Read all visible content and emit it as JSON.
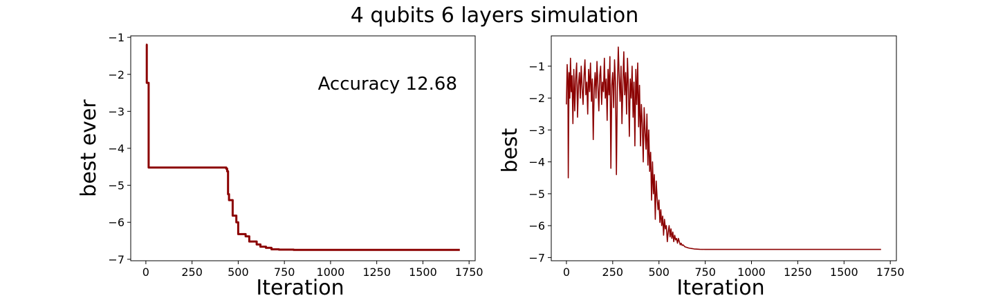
{
  "figure": {
    "title": "4 qubits 6 layers simulation"
  },
  "chart_data": [
    {
      "type": "line",
      "title": "",
      "xlabel": "Iteration",
      "ylabel": "best ever",
      "xlim": [
        -82,
        1783
      ],
      "ylim": [
        -7.04,
        -0.96
      ],
      "xticks": [
        0,
        250,
        500,
        750,
        1000,
        1250,
        1500,
        1750
      ],
      "yticks": [
        -7,
        -6,
        -5,
        -4,
        -3,
        -2,
        -1
      ],
      "xticklabels": [
        "0",
        "250",
        "500",
        "750",
        "1000",
        "1250",
        "1500",
        "1750"
      ],
      "yticklabels": [
        "−7",
        "−6",
        "−5",
        "−4",
        "−3",
        "−2",
        "−1"
      ],
      "annotation": "Accuracy 12.68",
      "grid": false,
      "series": [
        {
          "color": "#8b0000",
          "step": true,
          "x": [
            0,
            5,
            15,
            430,
            435,
            440,
            445,
            450,
            460,
            470,
            480,
            490,
            500,
            520,
            540,
            560,
            580,
            600,
            620,
            650,
            680,
            720,
            800,
            1000,
            1700
          ],
          "y": [
            -1.2,
            -2.23,
            -4.52,
            -4.52,
            -4.55,
            -4.62,
            -5.24,
            -5.4,
            -5.4,
            -5.82,
            -5.82,
            -6.0,
            -6.32,
            -6.32,
            -6.38,
            -6.52,
            -6.52,
            -6.6,
            -6.66,
            -6.69,
            -6.73,
            -6.74,
            -6.745,
            -6.745,
            -6.745
          ]
        }
      ]
    },
    {
      "type": "line",
      "title": "",
      "xlabel": "Iteration",
      "ylabel": "best",
      "xlim": [
        -82,
        1783
      ],
      "ylim": [
        -7.1,
        -0.05
      ],
      "xticks": [
        0,
        250,
        500,
        750,
        1000,
        1250,
        1500,
        1750
      ],
      "yticks": [
        -7,
        -6,
        -5,
        -4,
        -3,
        -2,
        -1
      ],
      "xticklabels": [
        "0",
        "250",
        "500",
        "750",
        "1000",
        "1250",
        "1500",
        "1750"
      ],
      "yticklabels": [
        "−7",
        "−6",
        "−5",
        "−4",
        "−3",
        "−2",
        "−1"
      ],
      "grid": false,
      "series": [
        {
          "color": "#8b0000",
          "x": [
            0,
            4,
            8,
            10,
            14,
            18,
            22,
            26,
            30,
            35,
            40,
            45,
            50,
            55,
            60,
            65,
            70,
            75,
            80,
            85,
            90,
            95,
            100,
            105,
            110,
            115,
            120,
            125,
            130,
            135,
            140,
            145,
            150,
            155,
            160,
            165,
            170,
            175,
            180,
            185,
            190,
            195,
            200,
            205,
            210,
            215,
            220,
            225,
            230,
            235,
            240,
            245,
            250,
            255,
            260,
            265,
            270,
            275,
            280,
            285,
            290,
            295,
            300,
            305,
            310,
            315,
            320,
            325,
            330,
            335,
            340,
            345,
            350,
            355,
            360,
            365,
            370,
            375,
            380,
            385,
            390,
            395,
            400,
            405,
            410,
            415,
            420,
            425,
            430,
            435,
            440,
            445,
            450,
            455,
            460,
            465,
            470,
            475,
            480,
            485,
            490,
            495,
            500,
            505,
            510,
            515,
            520,
            525,
            530,
            535,
            540,
            545,
            550,
            555,
            560,
            565,
            570,
            575,
            580,
            585,
            590,
            595,
            600,
            605,
            610,
            615,
            620,
            625,
            630,
            640,
            650,
            660,
            670,
            680,
            690,
            700,
            720,
            750,
            800,
            900,
            1000,
            1200,
            1400,
            1600,
            1700
          ],
          "y": [
            -2.2,
            -0.95,
            -1.5,
            -4.5,
            -1.2,
            -2.0,
            -0.75,
            -1.8,
            -1.3,
            -2.8,
            -1.1,
            -2.4,
            -1.4,
            -0.9,
            -2.6,
            -1.6,
            -1.2,
            -2.0,
            -1.0,
            -1.7,
            -2.2,
            -1.3,
            -0.8,
            -1.9,
            -1.5,
            -2.5,
            -1.1,
            -1.8,
            -0.9,
            -2.1,
            -1.4,
            -3.3,
            -1.7,
            -1.2,
            -2.0,
            -0.85,
            -1.6,
            -2.4,
            -1.3,
            -1.0,
            -2.2,
            -1.5,
            -1.8,
            -0.75,
            -2.0,
            -1.4,
            -2.7,
            -1.1,
            -1.9,
            -0.7,
            -4.2,
            -1.6,
            -1.2,
            -2.3,
            -0.8,
            -1.5,
            -4.4,
            -1.8,
            -0.4,
            -1.3,
            -2.1,
            -1.0,
            -2.8,
            -1.6,
            -0.55,
            -1.9,
            -1.2,
            -2.5,
            -0.75,
            -1.7,
            -3.2,
            -1.4,
            -2.0,
            -1.0,
            -2.6,
            -1.5,
            -3.5,
            -1.1,
            -2.2,
            -0.9,
            -2.9,
            -1.6,
            -3.5,
            -2.2,
            -2.8,
            -4.0,
            -2.3,
            -3.1,
            -3.6,
            -2.5,
            -4.1,
            -3.0,
            -4.3,
            -3.7,
            -5.2,
            -4.0,
            -5.0,
            -4.4,
            -5.8,
            -4.6,
            -5.1,
            -5.5,
            -5.2,
            -5.9,
            -5.5,
            -6.0,
            -5.7,
            -6.3,
            -5.8,
            -6.1,
            -6.0,
            -6.5,
            -6.2,
            -6.0,
            -6.35,
            -6.1,
            -6.4,
            -6.2,
            -6.5,
            -6.3,
            -6.45,
            -6.4,
            -6.55,
            -6.4,
            -6.5,
            -6.6,
            -6.55,
            -6.62,
            -6.6,
            -6.66,
            -6.68,
            -6.7,
            -6.71,
            -6.72,
            -6.73,
            -6.735,
            -6.74,
            -6.745,
            -6.745,
            -6.745,
            -6.745,
            -6.745,
            -6.745,
            -6.745,
            -6.745
          ]
        }
      ]
    }
  ]
}
